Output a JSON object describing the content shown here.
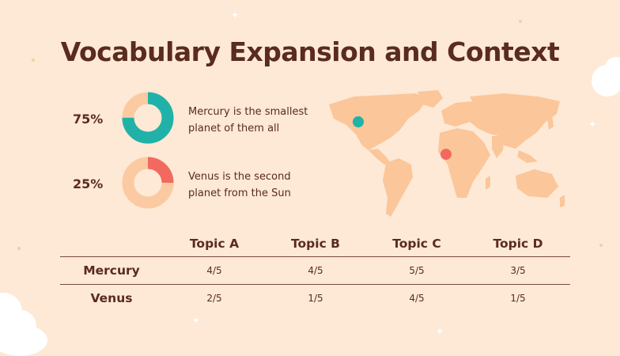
{
  "title": "Vocabulary Expansion and Context",
  "colors": {
    "background": "#fde9d6",
    "text": "#5a2b1f",
    "teal": "#20b2a8",
    "coral": "#f26a5f",
    "ring": "#fbcaa2",
    "map": "#fbc69a"
  },
  "stats": [
    {
      "percent": "75%",
      "value": 0.75,
      "color": "#20b2a8",
      "line1": "Mercury is the smallest",
      "line2": "planet of them all"
    },
    {
      "percent": "25%",
      "value": 0.25,
      "color": "#f26a5f",
      "line1": "Venus is the second",
      "line2": "planet from the Sun"
    }
  ],
  "map": {
    "icon": "world-map-icon",
    "markers": [
      {
        "name": "teal-marker",
        "color": "#20b2a8"
      },
      {
        "name": "coral-marker",
        "color": "#f26a5f"
      }
    ]
  },
  "table": {
    "columns": [
      "Topic A",
      "Topic B",
      "Topic C",
      "Topic D"
    ],
    "rows": [
      {
        "label": "Mercury",
        "values": [
          "4/5",
          "4/5",
          "5/5",
          "3/5"
        ]
      },
      {
        "label": "Venus",
        "values": [
          "2/5",
          "1/5",
          "4/5",
          "1/5"
        ]
      }
    ]
  }
}
